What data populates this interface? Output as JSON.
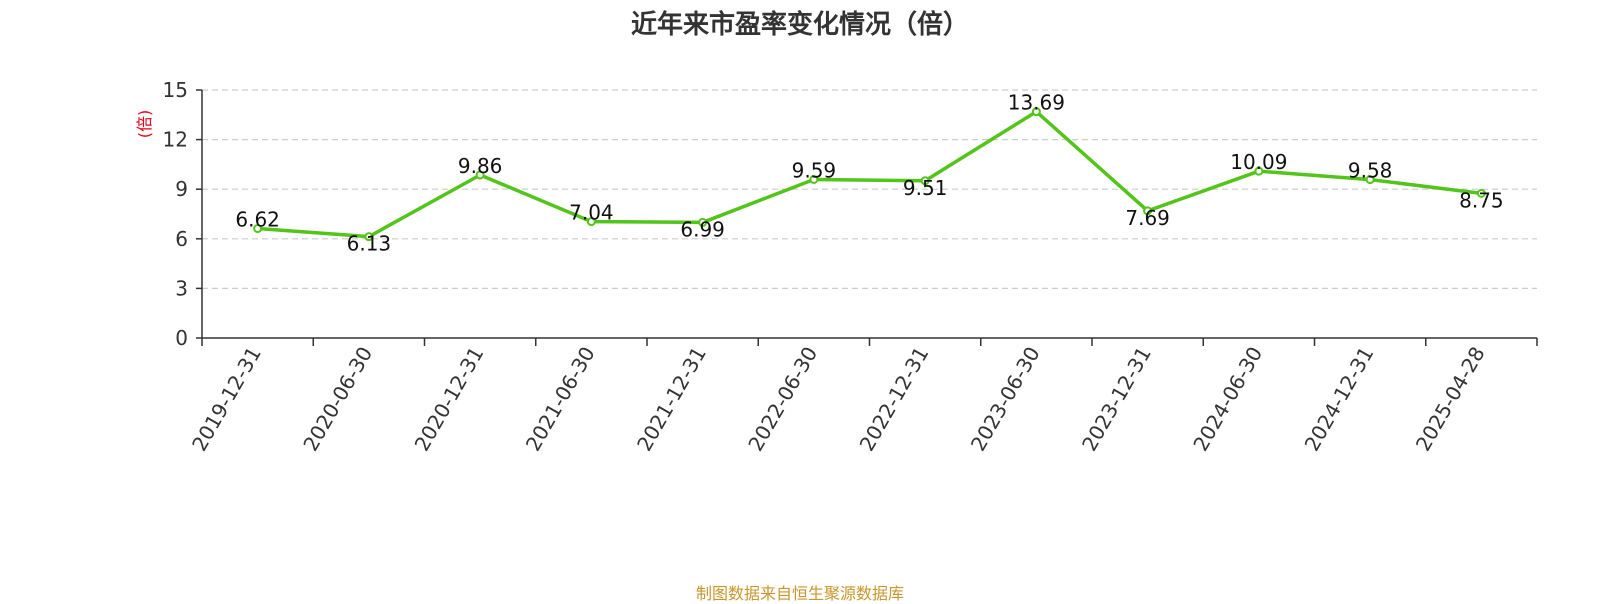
{
  "chart_data": {
    "type": "line",
    "title": "近年来市盈率变化情况（倍）",
    "ylabel": "(倍)",
    "xlabel": "",
    "categories": [
      "2019-12-31",
      "2020-06-30",
      "2020-12-31",
      "2021-06-30",
      "2021-12-31",
      "2022-06-30",
      "2022-12-31",
      "2023-06-30",
      "2023-12-31",
      "2024-06-30",
      "2024-12-31",
      "2025-04-28"
    ],
    "series": [
      {
        "values": [
          6.62,
          6.13,
          9.86,
          7.04,
          6.99,
          9.59,
          9.51,
          13.69,
          7.69,
          10.09,
          9.58,
          8.75
        ],
        "labels": [
          "6.62",
          "6.13",
          "9.86",
          "7.04",
          "6.99",
          "9.59",
          "9.51",
          "13.69",
          "7.69",
          "10.09",
          "9.58",
          "8.75"
        ],
        "color": "#52c41a"
      }
    ],
    "ylim": [
      0,
      15
    ],
    "yticks": [
      0,
      3,
      6,
      9,
      12,
      15
    ],
    "grid": true,
    "legend": "none"
  },
  "source": "制图数据来自恒生聚源数据库",
  "colors": {
    "line": "#52c41a",
    "unit": "#e60012",
    "source": "#c8962c",
    "grid": "#cccccc",
    "axis": "#333333"
  }
}
